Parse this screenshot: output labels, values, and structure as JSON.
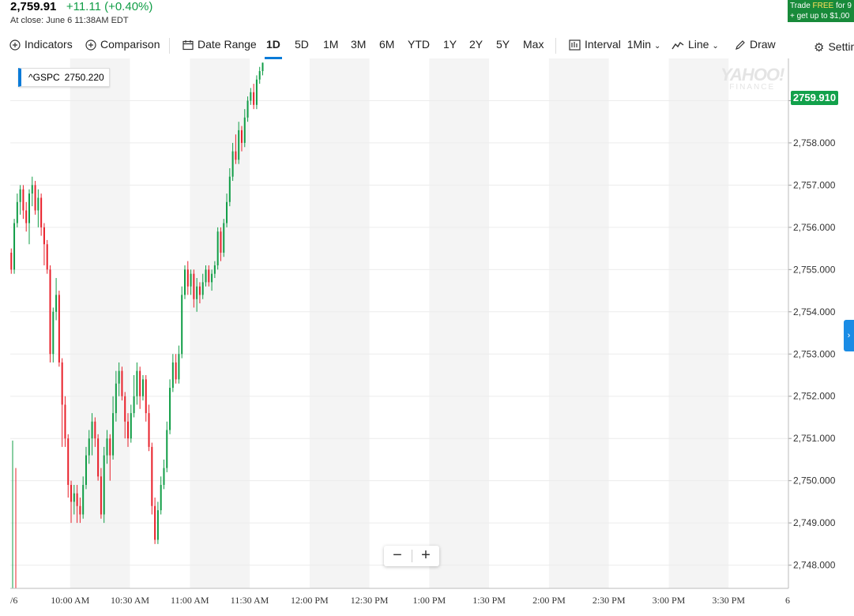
{
  "quote": {
    "price": "2,759.91",
    "change": "+11.11 (+0.40%)",
    "close_note": "At close: June 6 11:38AM EDT"
  },
  "promo": {
    "line1_prefix": "Trade ",
    "line1_highlight": "FREE",
    "line1_suffix": " for 9",
    "line2": "+ get up to $1,00"
  },
  "toolbar": {
    "indicators": "Indicators",
    "comparison": "Comparison",
    "date_range": "Date Range",
    "ranges": [
      "1D",
      "5D",
      "1M",
      "3M",
      "6M",
      "YTD",
      "1Y",
      "2Y",
      "5Y",
      "Max"
    ],
    "active_range": "1D",
    "interval_label": "Interval",
    "interval_value": "1Min",
    "chart_type": "Line",
    "draw": "Draw",
    "settings": "Settin"
  },
  "tooltip": {
    "symbol": "^GSPC",
    "value": "2750.220"
  },
  "watermark": {
    "line1": "YAHOO!",
    "line2": "FINANCE"
  },
  "current_price_label": "2759.910",
  "accent_colors": {
    "up": "#109d46",
    "down": "#e8202a",
    "accent": "#0a7bd8"
  },
  "icons": {
    "indicators": "plus-circle-icon",
    "comparison": "plus-circle-icon",
    "date_range": "calendar-icon",
    "interval": "bar-chart-icon",
    "chart_type": "line-chart-icon",
    "draw": "pencil-icon",
    "settings": "gear-icon",
    "side_expand": "chevron-right-icon"
  },
  "zoom": {
    "minus": "−",
    "plus": "+"
  },
  "chart_data": {
    "type": "candlestick",
    "y_ticks": [
      "2,748.000",
      "2,749.000",
      "2,750.000",
      "2,751.000",
      "2,752.000",
      "2,753.000",
      "2,754.000",
      "2,755.000",
      "2,756.000",
      "2,757.000",
      "2,758.000",
      "2,759.000"
    ],
    "y_tick_values": [
      2748,
      2749,
      2750,
      2751,
      2752,
      2753,
      2754,
      2755,
      2756,
      2757,
      2758,
      2759
    ],
    "ylim": [
      2747.45,
      2760.0
    ],
    "x_ticks": [
      "10:00 AM",
      "10:30 AM",
      "11:00 AM",
      "11:30 AM",
      "12:00 PM",
      "12:30 PM",
      "1:00 PM",
      "1:30 PM",
      "2:00 PM",
      "2:30 PM",
      "3:00 PM",
      "3:30 PM"
    ],
    "x_tick_minutes": [
      30,
      60,
      90,
      120,
      150,
      180,
      210,
      240,
      270,
      300,
      330,
      360
    ],
    "x_edge_labels": [
      "/6",
      "6"
    ],
    "xlim_minutes": [
      0,
      390
    ],
    "session": "09:30-16:00",
    "grid": true,
    "shaded_bands": true,
    "candles": [
      [
        2755.4,
        2755.0,
        2754.9,
        2755.5
      ],
      [
        2755.0,
        2756.1,
        2754.9,
        2756.2
      ],
      [
        2756.1,
        2756.6,
        2756.0,
        2756.8
      ],
      [
        2756.6,
        2756.9,
        2756.3,
        2757.0
      ],
      [
        2756.9,
        2756.4,
        2756.2,
        2757.0
      ],
      [
        2756.4,
        2756.1,
        2755.9,
        2756.6
      ],
      [
        2756.1,
        2756.8,
        2755.6,
        2756.9
      ],
      [
        2756.8,
        2757.0,
        2756.5,
        2757.2
      ],
      [
        2757.0,
        2756.4,
        2756.3,
        2757.1
      ],
      [
        2756.4,
        2756.7,
        2756.0,
        2756.9
      ],
      [
        2756.7,
        2756.0,
        2755.8,
        2756.8
      ],
      [
        2756.0,
        2755.6,
        2755.1,
        2756.1
      ],
      [
        2755.6,
        2755.0,
        2754.9,
        2755.7
      ],
      [
        2755.0,
        2753.0,
        2752.8,
        2755.1
      ],
      [
        2753.0,
        2754.0,
        2752.8,
        2754.1
      ],
      [
        2754.0,
        2754.4,
        2753.8,
        2754.8
      ],
      [
        2754.4,
        2752.8,
        2752.7,
        2754.5
      ],
      [
        2752.8,
        2751.8,
        2750.8,
        2752.9
      ],
      [
        2751.8,
        2751.0,
        2750.8,
        2752.0
      ],
      [
        2751.0,
        2749.9,
        2749.6,
        2751.1
      ],
      [
        2749.9,
        2749.5,
        2749.0,
        2750.0
      ],
      [
        2749.5,
        2749.7,
        2749.2,
        2749.9
      ],
      [
        2749.7,
        2749.4,
        2749.0,
        2749.9
      ],
      [
        2749.4,
        2749.2,
        2749.0,
        2749.6
      ],
      [
        2749.2,
        2749.9,
        2749.1,
        2750.1
      ],
      [
        2749.9,
        2750.6,
        2749.8,
        2750.8
      ],
      [
        2750.6,
        2751.0,
        2750.4,
        2751.2
      ],
      [
        2751.0,
        2751.4,
        2750.6,
        2751.6
      ],
      [
        2751.4,
        2751.0,
        2750.8,
        2751.5
      ],
      [
        2751.0,
        2750.1,
        2750.0,
        2751.1
      ],
      [
        2750.1,
        2749.2,
        2749.1,
        2750.3
      ],
      [
        2749.2,
        2750.6,
        2749.0,
        2750.8
      ],
      [
        2750.6,
        2751.0,
        2750.4,
        2751.2
      ],
      [
        2751.0,
        2750.6,
        2750.0,
        2751.1
      ],
      [
        2750.6,
        2751.6,
        2750.5,
        2752.0
      ],
      [
        2751.6,
        2752.3,
        2751.4,
        2752.6
      ],
      [
        2752.3,
        2752.6,
        2752.0,
        2752.8
      ],
      [
        2752.6,
        2752.0,
        2751.9,
        2752.7
      ],
      [
        2752.0,
        2751.4,
        2751.0,
        2752.1
      ],
      [
        2751.4,
        2751.0,
        2750.8,
        2751.6
      ],
      [
        2751.0,
        2751.6,
        2750.9,
        2751.8
      ],
      [
        2751.6,
        2752.0,
        2751.5,
        2752.5
      ],
      [
        2752.0,
        2752.6,
        2751.8,
        2752.8
      ],
      [
        2752.6,
        2752.0,
        2751.7,
        2752.7
      ],
      [
        2752.0,
        2752.4,
        2751.9,
        2752.5
      ],
      [
        2752.4,
        2751.6,
        2751.4,
        2752.5
      ],
      [
        2751.6,
        2750.8,
        2750.7,
        2751.8
      ],
      [
        2750.8,
        2749.4,
        2749.2,
        2750.9
      ],
      [
        2749.4,
        2748.6,
        2748.5,
        2749.6
      ],
      [
        2748.6,
        2749.3,
        2748.5,
        2749.5
      ],
      [
        2749.3,
        2749.9,
        2749.2,
        2750.1
      ],
      [
        2749.9,
        2750.3,
        2749.8,
        2750.5
      ],
      [
        2750.3,
        2751.2,
        2750.2,
        2751.4
      ],
      [
        2751.2,
        2752.2,
        2751.1,
        2752.4
      ],
      [
        2752.2,
        2752.8,
        2752.1,
        2753.0
      ],
      [
        2752.8,
        2752.4,
        2752.3,
        2753.0
      ],
      [
        2752.4,
        2753.0,
        2752.3,
        2753.2
      ],
      [
        2753.0,
        2754.4,
        2752.9,
        2754.6
      ],
      [
        2754.4,
        2755.0,
        2754.3,
        2755.1
      ],
      [
        2755.0,
        2754.6,
        2754.4,
        2755.2
      ],
      [
        2754.6,
        2754.9,
        2754.4,
        2755.0
      ],
      [
        2754.9,
        2754.3,
        2754.1,
        2755.0
      ],
      [
        2754.3,
        2754.6,
        2754.0,
        2754.8
      ],
      [
        2754.6,
        2754.4,
        2754.2,
        2754.7
      ],
      [
        2754.4,
        2754.7,
        2754.3,
        2754.9
      ],
      [
        2754.7,
        2755.0,
        2754.6,
        2755.1
      ],
      [
        2755.0,
        2754.7,
        2754.6,
        2755.1
      ],
      [
        2754.7,
        2754.9,
        2754.5,
        2755.0
      ],
      [
        2754.9,
        2755.1,
        2754.8,
        2755.2
      ],
      [
        2755.1,
        2755.9,
        2755.0,
        2756.0
      ],
      [
        2755.9,
        2755.4,
        2755.2,
        2756.0
      ],
      [
        2755.4,
        2756.1,
        2755.3,
        2756.2
      ],
      [
        2756.1,
        2756.6,
        2756.0,
        2756.8
      ],
      [
        2756.6,
        2757.2,
        2756.5,
        2757.4
      ],
      [
        2757.2,
        2757.8,
        2757.1,
        2758.0
      ],
      [
        2757.8,
        2757.6,
        2757.5,
        2758.2
      ],
      [
        2757.6,
        2758.3,
        2757.5,
        2758.5
      ],
      [
        2758.3,
        2758.0,
        2757.8,
        2758.4
      ],
      [
        2758.0,
        2758.6,
        2757.9,
        2758.8
      ],
      [
        2758.6,
        2759.0,
        2758.5,
        2759.1
      ],
      [
        2759.0,
        2759.2,
        2758.9,
        2759.3
      ],
      [
        2759.2,
        2758.9,
        2758.8,
        2759.4
      ],
      [
        2758.9,
        2759.5,
        2758.8,
        2759.6
      ],
      [
        2759.5,
        2759.7,
        2759.4,
        2759.8
      ],
      [
        2759.7,
        2759.9,
        2759.6,
        2759.9
      ]
    ]
  }
}
